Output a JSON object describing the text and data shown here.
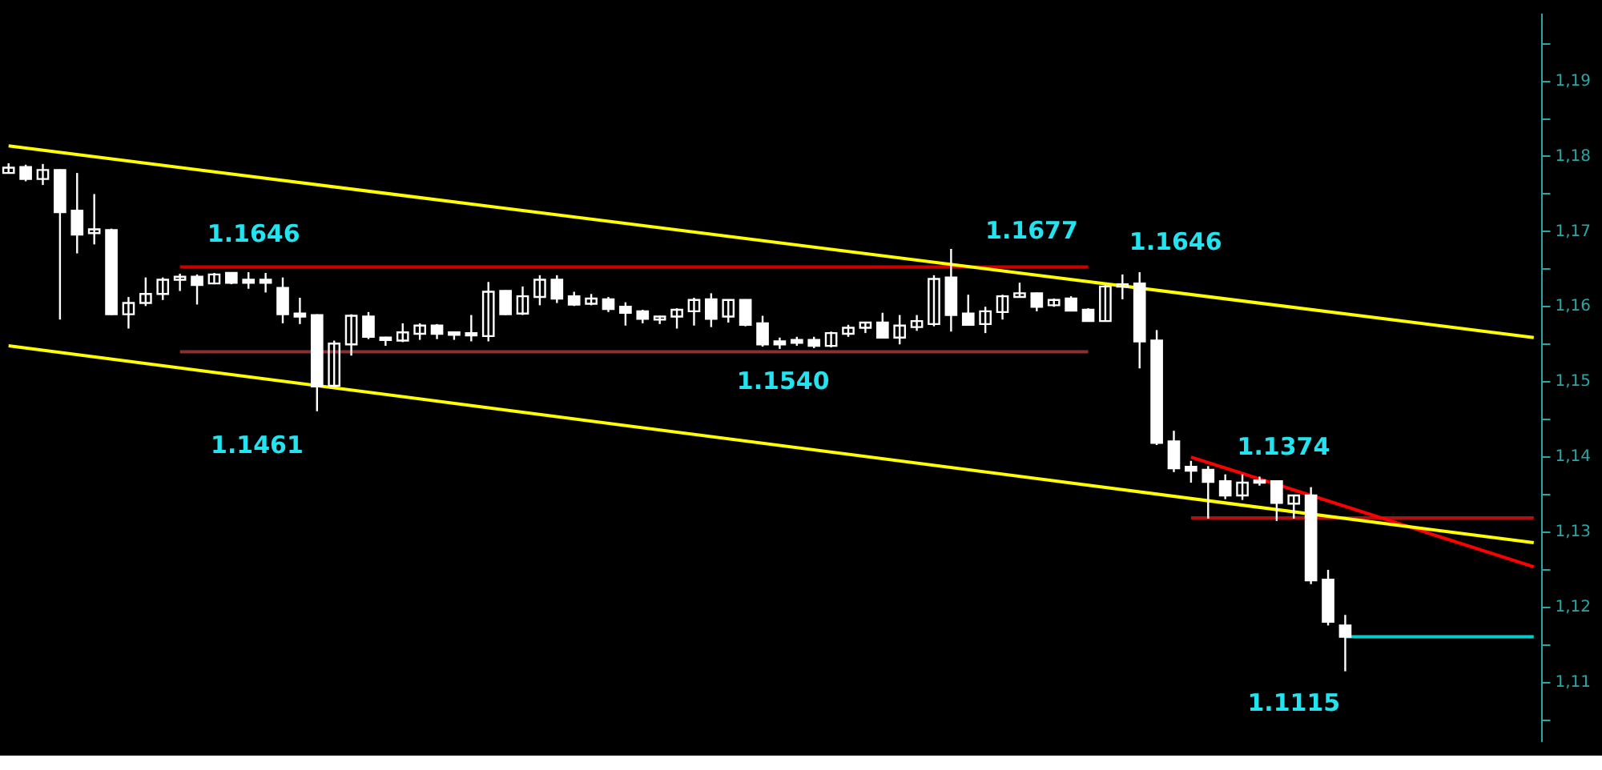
{
  "chart_data": {
    "type": "candlestick",
    "categories": [
      null,
      null,
      null,
      null,
      null,
      null,
      null,
      null,
      null,
      null,
      null,
      null,
      null,
      null,
      null,
      null,
      null,
      null,
      null,
      null,
      null,
      null,
      null,
      null,
      null,
      null,
      null,
      null,
      null,
      null,
      null,
      null,
      null,
      null,
      null,
      null,
      null,
      null,
      null,
      null,
      null,
      null,
      null,
      null,
      null,
      null,
      null,
      null,
      null,
      null,
      null,
      null,
      null,
      null,
      null,
      null,
      null,
      null,
      null,
      null,
      null,
      null,
      null,
      null,
      null,
      null,
      null,
      null,
      null,
      null,
      null,
      null,
      null,
      null,
      null,
      null,
      null,
      null,
      null,
      null,
      null,
      null,
      null,
      null,
      null,
      null,
      null,
      null,
      null,
      null
    ],
    "color": "#ffffff",
    "ohlc": [
      [
        1.1778,
        1.1791,
        1.1777,
        1.1785
      ],
      [
        1.1786,
        1.1789,
        1.1767,
        1.177
      ],
      [
        1.177,
        1.179,
        1.1762,
        1.1782
      ],
      [
        1.1782,
        1.1783,
        1.1583,
        1.1726
      ],
      [
        1.1728,
        1.1778,
        1.1671,
        1.1696
      ],
      [
        1.1698,
        1.175,
        1.1683,
        1.1703
      ],
      [
        1.1702,
        1.1704,
        1.1589,
        1.159
      ],
      [
        1.159,
        1.1613,
        1.1571,
        1.1605
      ],
      [
        1.1605,
        1.1639,
        1.1601,
        1.1617
      ],
      [
        1.1617,
        1.1639,
        1.1609,
        1.1636
      ],
      [
        1.1636,
        1.1644,
        1.1621,
        1.164
      ],
      [
        1.164,
        1.1643,
        1.1603,
        1.1629
      ],
      [
        1.1631,
        1.1645,
        1.163,
        1.1643
      ],
      [
        1.1645,
        1.1645,
        1.163,
        1.1632
      ],
      [
        1.1636,
        1.1646,
        1.1624,
        1.1632
      ],
      [
        1.1636,
        1.1645,
        1.1619,
        1.1632
      ],
      [
        1.1625,
        1.1639,
        1.1578,
        1.159
      ],
      [
        1.1591,
        1.1612,
        1.1577,
        1.1587
      ],
      [
        1.1589,
        1.159,
        1.1461,
        1.1494
      ],
      [
        1.1495,
        1.1555,
        1.1493,
        1.1551
      ],
      [
        1.155,
        1.159,
        1.1535,
        1.1588
      ],
      [
        1.1587,
        1.1593,
        1.1557,
        1.156
      ],
      [
        1.1559,
        1.156,
        1.1548,
        1.1556
      ],
      [
        1.1555,
        1.1578,
        1.1553,
        1.1566
      ],
      [
        1.1564,
        1.1578,
        1.1556,
        1.1575
      ],
      [
        1.1575,
        1.1577,
        1.1557,
        1.1564
      ],
      [
        1.1566,
        1.1566,
        1.1556,
        1.1563
      ],
      [
        1.1565,
        1.1589,
        1.1554,
        1.1562
      ],
      [
        1.1561,
        1.1633,
        1.1554,
        1.162
      ],
      [
        1.1621,
        1.1622,
        1.1589,
        1.159
      ],
      [
        1.1591,
        1.1627,
        1.1589,
        1.1614
      ],
      [
        1.1613,
        1.1642,
        1.1602,
        1.1636
      ],
      [
        1.1636,
        1.1642,
        1.1605,
        1.1611
      ],
      [
        1.1614,
        1.162,
        1.1601,
        1.1603
      ],
      [
        1.1604,
        1.1617,
        1.1602,
        1.1611
      ],
      [
        1.161,
        1.1613,
        1.1593,
        1.1597
      ],
      [
        1.16,
        1.1606,
        1.1575,
        1.1592
      ],
      [
        1.1594,
        1.1596,
        1.1578,
        1.1584
      ],
      [
        1.1583,
        1.1588,
        1.1577,
        1.1587
      ],
      [
        1.1587,
        1.1598,
        1.1571,
        1.1596
      ],
      [
        1.1594,
        1.1612,
        1.1575,
        1.1609
      ],
      [
        1.161,
        1.1618,
        1.1573,
        1.1584
      ],
      [
        1.1587,
        1.161,
        1.1579,
        1.1609
      ],
      [
        1.1609,
        1.161,
        1.1574,
        1.1576
      ],
      [
        1.1578,
        1.1588,
        1.1547,
        1.155
      ],
      [
        1.1554,
        1.1559,
        1.1544,
        1.155
      ],
      [
        1.1556,
        1.156,
        1.1548,
        1.1552
      ],
      [
        1.1556,
        1.156,
        1.1545,
        1.1548
      ],
      [
        1.1548,
        1.1567,
        1.1546,
        1.1565
      ],
      [
        1.1564,
        1.1576,
        1.156,
        1.1572
      ],
      [
        1.1572,
        1.158,
        1.1565,
        1.1579
      ],
      [
        1.1579,
        1.1592,
        1.1558,
        1.1559
      ],
      [
        1.1559,
        1.1589,
        1.155,
        1.1575
      ],
      [
        1.1573,
        1.1589,
        1.1568,
        1.1581
      ],
      [
        1.1577,
        1.1642,
        1.1574,
        1.1637
      ],
      [
        1.1639,
        1.1677,
        1.1567,
        1.1589
      ],
      [
        1.1591,
        1.1616,
        1.1575,
        1.1576
      ],
      [
        1.1577,
        1.16,
        1.1565,
        1.1594
      ],
      [
        1.1593,
        1.1616,
        1.1583,
        1.1614
      ],
      [
        1.1613,
        1.1632,
        1.1612,
        1.1618
      ],
      [
        1.1618,
        1.1619,
        1.1594,
        1.16
      ],
      [
        1.1602,
        1.1611,
        1.16,
        1.1609
      ],
      [
        1.1611,
        1.1614,
        1.1594,
        1.1595
      ],
      [
        1.1596,
        1.1598,
        1.158,
        1.1581
      ],
      [
        1.1581,
        1.163,
        1.158,
        1.1627
      ],
      [
        1.1628,
        1.1643,
        1.161,
        1.163
      ],
      [
        1.1631,
        1.1646,
        1.1518,
        1.1554
      ],
      [
        1.1555,
        1.1569,
        1.1416,
        1.1419
      ],
      [
        1.1421,
        1.1435,
        1.138,
        1.1385
      ],
      [
        1.1387,
        1.1395,
        1.1366,
        1.1382
      ],
      [
        1.1383,
        1.1388,
        1.1318,
        1.1367
      ],
      [
        1.1368,
        1.1377,
        1.1344,
        1.1349
      ],
      [
        1.1349,
        1.1377,
        1.1343,
        1.1366
      ],
      [
        1.1369,
        1.1374,
        1.1362,
        1.1366
      ],
      [
        1.1368,
        1.1369,
        1.1315,
        1.1339
      ],
      [
        1.1338,
        1.135,
        1.1318,
        1.1349
      ],
      [
        1.1349,
        1.136,
        1.1231,
        1.1236
      ],
      [
        1.1237,
        1.125,
        1.1176,
        1.1181
      ],
      [
        1.1176,
        1.119,
        1.1115,
        1.1161
      ],
      null,
      null,
      null,
      null,
      null,
      null,
      null,
      null,
      null,
      null,
      null
    ],
    "series": [
      {
        "type": "line",
        "color": "#ffff00",
        "values": [
          1.1814,
          null,
          null,
          null,
          null,
          null,
          null,
          null,
          null,
          null,
          null,
          null,
          null,
          null,
          null,
          null,
          null,
          null,
          null,
          null,
          null,
          null,
          null,
          null,
          null,
          null,
          null,
          null,
          null,
          null,
          null,
          null,
          null,
          null,
          null,
          null,
          null,
          null,
          null,
          null,
          null,
          null,
          null,
          null,
          null,
          null,
          null,
          null,
          null,
          null,
          null,
          null,
          null,
          null,
          null,
          null,
          null,
          null,
          null,
          null,
          null,
          null,
          null,
          null,
          null,
          null,
          null,
          null,
          null,
          null,
          null,
          null,
          null,
          null,
          null,
          null,
          null,
          null,
          null,
          null,
          null,
          null,
          null,
          null,
          null,
          null,
          null,
          null,
          null,
          1.1559
        ]
      },
      {
        "type": "line",
        "color": "#ffff00",
        "values": [
          1.1548,
          null,
          null,
          null,
          null,
          null,
          null,
          null,
          null,
          null,
          null,
          null,
          null,
          null,
          null,
          null,
          null,
          null,
          null,
          null,
          null,
          null,
          null,
          null,
          null,
          null,
          null,
          null,
          null,
          null,
          null,
          null,
          null,
          null,
          null,
          null,
          null,
          null,
          null,
          null,
          null,
          null,
          null,
          null,
          null,
          null,
          null,
          null,
          null,
          null,
          null,
          null,
          null,
          null,
          null,
          null,
          null,
          null,
          null,
          null,
          null,
          null,
          null,
          null,
          null,
          null,
          null,
          null,
          null,
          null,
          null,
          null,
          null,
          null,
          null,
          null,
          null,
          null,
          null,
          null,
          null,
          null,
          null,
          null,
          null,
          null,
          null,
          null,
          null,
          1.1286
        ]
      },
      {
        "type": "line",
        "color": "#cc0000",
        "values": [
          null,
          null,
          null,
          null,
          null,
          null,
          null,
          null,
          null,
          null,
          1.1653,
          null,
          null,
          null,
          null,
          null,
          null,
          null,
          null,
          null,
          null,
          null,
          null,
          null,
          null,
          null,
          null,
          null,
          null,
          null,
          null,
          null,
          null,
          null,
          null,
          null,
          null,
          null,
          null,
          null,
          null,
          null,
          null,
          null,
          null,
          null,
          null,
          null,
          null,
          null,
          null,
          null,
          null,
          null,
          null,
          null,
          null,
          null,
          null,
          null,
          null,
          null,
          null,
          1.1653,
          null,
          null,
          null,
          null,
          null,
          null,
          null,
          null,
          null,
          null,
          null,
          null,
          null,
          null,
          null,
          null,
          null,
          null,
          null,
          null,
          null,
          null,
          null,
          null,
          null,
          null
        ]
      },
      {
        "type": "line",
        "color": "#8b3030",
        "values": [
          null,
          null,
          null,
          null,
          null,
          null,
          null,
          null,
          null,
          null,
          1.154,
          null,
          null,
          null,
          null,
          null,
          null,
          null,
          null,
          null,
          null,
          null,
          null,
          null,
          null,
          null,
          null,
          null,
          null,
          null,
          null,
          null,
          null,
          null,
          null,
          null,
          null,
          null,
          null,
          null,
          null,
          null,
          null,
          null,
          null,
          null,
          null,
          null,
          null,
          null,
          null,
          null,
          null,
          null,
          null,
          null,
          null,
          null,
          null,
          null,
          null,
          null,
          null,
          1.154,
          null,
          null,
          null,
          null,
          null,
          null,
          null,
          null,
          null,
          null,
          null,
          null,
          null,
          null,
          null,
          null,
          null,
          null,
          null,
          null,
          null,
          null,
          null,
          null,
          null,
          null
        ]
      },
      {
        "type": "line",
        "color": "#ff0000",
        "values": [
          null,
          null,
          null,
          null,
          null,
          null,
          null,
          null,
          null,
          null,
          null,
          null,
          null,
          null,
          null,
          null,
          null,
          null,
          null,
          null,
          null,
          null,
          null,
          null,
          null,
          null,
          null,
          null,
          null,
          null,
          null,
          null,
          null,
          null,
          null,
          null,
          null,
          null,
          null,
          null,
          null,
          null,
          null,
          null,
          null,
          null,
          null,
          null,
          null,
          null,
          null,
          null,
          null,
          null,
          null,
          null,
          null,
          null,
          null,
          null,
          null,
          null,
          null,
          null,
          null,
          null,
          null,
          null,
          null,
          1.14,
          null,
          null,
          null,
          null,
          null,
          null,
          null,
          null,
          null,
          null,
          null,
          null,
          null,
          null,
          null,
          null,
          null,
          null,
          null,
          1.1254
        ]
      },
      {
        "type": "line",
        "color": "#b01010",
        "values": [
          null,
          null,
          null,
          null,
          null,
          null,
          null,
          null,
          null,
          null,
          null,
          null,
          null,
          null,
          null,
          null,
          null,
          null,
          null,
          null,
          null,
          null,
          null,
          null,
          null,
          null,
          null,
          null,
          null,
          null,
          null,
          null,
          null,
          null,
          null,
          null,
          null,
          null,
          null,
          null,
          null,
          null,
          null,
          null,
          null,
          null,
          null,
          null,
          null,
          null,
          null,
          null,
          null,
          null,
          null,
          null,
          null,
          null,
          null,
          null,
          null,
          null,
          null,
          null,
          null,
          null,
          null,
          null,
          null,
          1.1319,
          null,
          null,
          null,
          null,
          null,
          null,
          null,
          null,
          null,
          null,
          null,
          null,
          null,
          null,
          null,
          null,
          null,
          null,
          null,
          1.1319
        ]
      },
      {
        "type": "line",
        "color": "#00cccc",
        "values": [
          null,
          null,
          null,
          null,
          null,
          null,
          null,
          null,
          null,
          null,
          null,
          null,
          null,
          null,
          null,
          null,
          null,
          null,
          null,
          null,
          null,
          null,
          null,
          null,
          null,
          null,
          null,
          null,
          null,
          null,
          null,
          null,
          null,
          null,
          null,
          null,
          null,
          null,
          null,
          null,
          null,
          null,
          null,
          null,
          null,
          null,
          null,
          null,
          null,
          null,
          null,
          null,
          null,
          null,
          null,
          null,
          null,
          null,
          null,
          null,
          null,
          null,
          null,
          null,
          null,
          null,
          null,
          null,
          null,
          null,
          null,
          null,
          null,
          null,
          null,
          null,
          null,
          null,
          1.1161,
          null,
          null,
          null,
          null,
          null,
          null,
          null,
          null,
          null,
          null,
          1.1161
        ]
      }
    ],
    "ylim": [
      1.1022,
      1.1989
    ],
    "yticks": [
      {
        "value": 1.105,
        "label": null
      },
      {
        "value": 1.11,
        "label": "1,11"
      },
      {
        "value": 1.115,
        "label": null
      },
      {
        "value": 1.12,
        "label": "1,12"
      },
      {
        "value": 1.125,
        "label": null
      },
      {
        "value": 1.13,
        "label": "1,13"
      },
      {
        "value": 1.135,
        "label": null
      },
      {
        "value": 1.14,
        "label": "1,14"
      },
      {
        "value": 1.145,
        "label": null
      },
      {
        "value": 1.15,
        "label": "1,15"
      },
      {
        "value": 1.155,
        "label": null
      },
      {
        "value": 1.16,
        "label": "1,16"
      },
      {
        "value": 1.165,
        "label": null
      },
      {
        "value": 1.17,
        "label": "1,17"
      },
      {
        "value": 1.175,
        "label": null
      },
      {
        "value": 1.18,
        "label": "1,18"
      },
      {
        "value": 1.185,
        "label": null
      },
      {
        "value": 1.19,
        "label": "1,19"
      },
      {
        "value": 1.195,
        "label": null
      }
    ],
    "tick_labels": "y",
    "annotations": [
      "1.1646",
      "1.1461",
      "1.1540",
      "1.1677",
      "1.1646",
      "1.1374",
      "1.1115"
    ]
  }
}
